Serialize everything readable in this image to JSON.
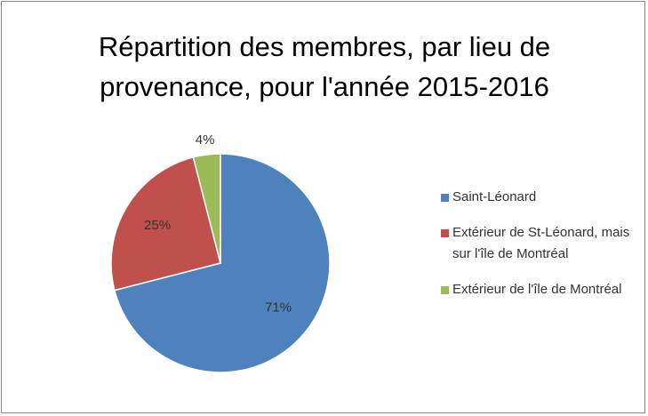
{
  "chart_data": {
    "type": "pie",
    "title": "Répartition des membres, par lieu de provenance, pour l'année 2015-2016",
    "categories": [
      "Saint-Léonard",
      "Extérieur de St-Léonard, mais sur l'île de Montréal",
      "Extérieur de l'île de Montréal"
    ],
    "values": [
      71,
      25,
      4
    ],
    "value_labels": [
      "71%",
      "25%",
      "4%"
    ],
    "colors": [
      "#4f81bd",
      "#c0504d",
      "#9bbb59"
    ],
    "legend": "right"
  }
}
